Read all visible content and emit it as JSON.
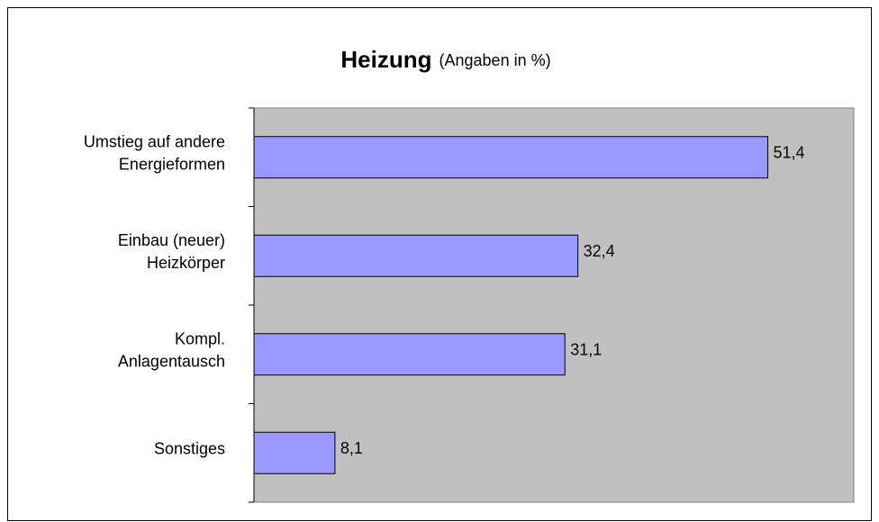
{
  "chart_data": {
    "type": "bar",
    "orientation": "horizontal",
    "title": "Heizung",
    "subtitle": "(Angaben in %)",
    "categories": [
      "Umstieg auf andere\nEnergieformen",
      "Einbau (neuer)\nHeizkörper",
      "Kompl.\nAnlagentausch",
      "Sonstiges"
    ],
    "values": [
      51.4,
      32.4,
      31.1,
      8.1
    ],
    "value_labels": [
      "51,4",
      "32,4",
      "31,1",
      "8,1"
    ],
    "color": "#9999ff",
    "plot_background": "#c0c0c0",
    "xlim": [
      0,
      60
    ]
  }
}
